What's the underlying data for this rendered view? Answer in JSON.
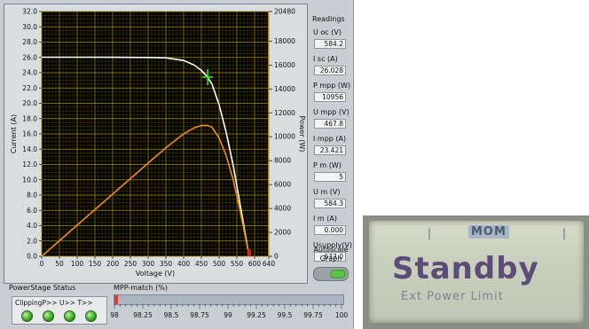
{
  "chart": {
    "xlabel": "Voltage (V)",
    "ylabel_left": "Current (A)",
    "ylabel_right": "Power (W)",
    "x_ticks": [
      "0",
      "50",
      "100",
      "150",
      "200",
      "250",
      "300",
      "350",
      "400",
      "450",
      "500",
      "550",
      "600",
      "640"
    ],
    "y_left_ticks": [
      "0.0",
      "2.0",
      "4.0",
      "6.0",
      "8.0",
      "10.0",
      "12.0",
      "14.0",
      "16.0",
      "18.0",
      "20.0",
      "22.0",
      "24.0",
      "26.0",
      "28.0",
      "30.0",
      "32.0"
    ],
    "y_right_ticks": [
      "0",
      "2000",
      "4000",
      "6000",
      "8000",
      "10000",
      "12000",
      "14000",
      "16000",
      "18000",
      "20480"
    ]
  },
  "chart_data": {
    "type": "line",
    "xlabel": "Voltage (V)",
    "ylabel": "Current (A)",
    "y2label": "Power (W)",
    "xlim": [
      0,
      640
    ],
    "ylim": [
      0,
      32
    ],
    "y2lim": [
      0,
      20480
    ],
    "grid": true,
    "series": [
      {
        "axis": "left",
        "color": "#ffffff",
        "x": [
          0,
          100,
          200,
          300,
          350,
          400,
          430,
          450,
          467.8,
          480,
          500,
          520,
          540,
          560,
          575,
          584.2
        ],
        "y": [
          26.03,
          26.03,
          26.02,
          26.0,
          25.95,
          25.6,
          25.0,
          24.3,
          23.42,
          22.5,
          19.8,
          16.2,
          11.8,
          6.6,
          2.6,
          0
        ]
      },
      {
        "axis": "right",
        "color": "#f08a24",
        "x": [
          0,
          100,
          200,
          300,
          350,
          400,
          430,
          450,
          467.8,
          480,
          500,
          520,
          540,
          560,
          575,
          584.2
        ],
        "y": [
          0,
          2603,
          5204,
          7800,
          9083,
          10240,
          10750,
          10935,
          10956,
          10800,
          9900,
          8424,
          6372,
          3696,
          1495,
          0
        ]
      }
    ],
    "markers": [
      {
        "name": "MPP cursor",
        "x": 467.8,
        "y": 23.421,
        "color": "#33dd33"
      },
      {
        "name": "operating point",
        "x": 584.3,
        "y": 0,
        "color": "#e02020"
      }
    ]
  },
  "readings": {
    "title": "Readings",
    "items": [
      {
        "label": "U oc (V)",
        "value": "584.2"
      },
      {
        "label": "I sc (A)",
        "value": "26.028"
      },
      {
        "label": "P mpp (W)",
        "value": "10956"
      },
      {
        "label": "U mpp (V)",
        "value": "467.8"
      },
      {
        "label": "I mpp (A)",
        "value": "23.421"
      },
      {
        "label": "P m (W)",
        "value": "5"
      },
      {
        "label": "U m (V)",
        "value": "584.3"
      },
      {
        "label": "I m (A)",
        "value": "0.000"
      },
      {
        "label": "Usupply(V)",
        "value": "633.0"
      }
    ],
    "autoscale_label_1": "Autoscale",
    "autoscale_label_2": "Graph",
    "autoscale_on": true
  },
  "powerstage": {
    "label": "PowerStage Status",
    "flags": "ClippingP>> U>> T>>",
    "led_color": "#37a31f"
  },
  "mpp_match": {
    "label": "MPP-match (%)",
    "value": 98.03,
    "range": [
      98,
      100
    ],
    "ticks": [
      "98",
      "98.25",
      "98.5",
      "98.75",
      "99",
      "99.25",
      "99.5",
      "99.75",
      "100"
    ]
  },
  "lcd": {
    "status_text": "MOM",
    "main_text": "Standby",
    "sub_text": "Ext Power Limit"
  }
}
